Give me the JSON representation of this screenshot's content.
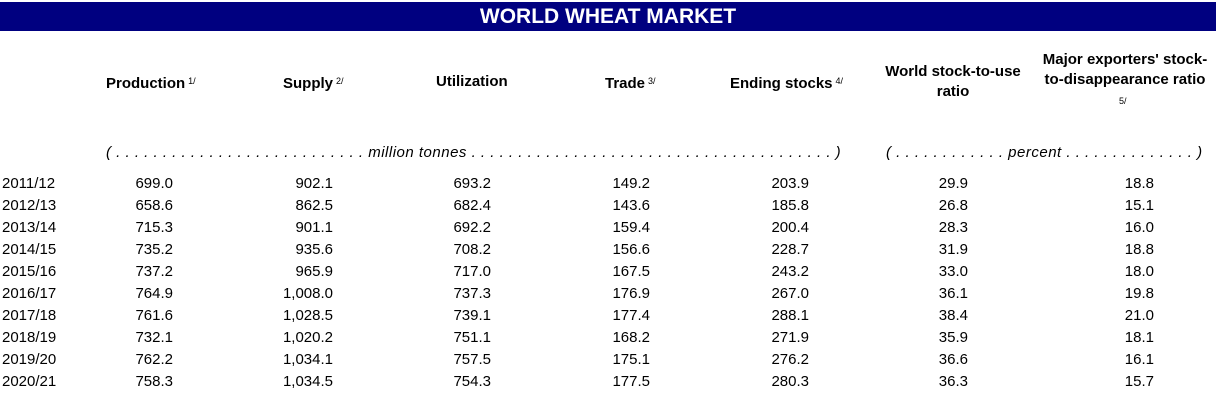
{
  "title": "WORLD WHEAT MARKET",
  "columns": [
    {
      "label": "Production",
      "note": "1/"
    },
    {
      "label": "Supply",
      "note": "2/"
    },
    {
      "label": "Utilization",
      "note": ""
    },
    {
      "label": "Trade",
      "note": "3/"
    },
    {
      "label": "Ending stocks",
      "note": "4/"
    },
    {
      "label_line1": "World stock-to-use",
      "label_line2": "ratio"
    },
    {
      "label_line1": "Major exporters' stock-",
      "label_line2": "to-disappearance ratio",
      "note": "5/"
    }
  ],
  "units": {
    "million": "( . . . . . . . . . . . . . . . . . . . . . . . . . . . million tonnes . . . . . . . . . . . . . . . . . . . . . . . . . . . . . . . . . . . . . . . )",
    "percent": "( . . . . . . . . . . . . percent . . . . . . . . . . . . . . )"
  },
  "rows": [
    {
      "year": "2011/12",
      "values": [
        "699.0",
        "902.1",
        "693.2",
        "149.2",
        "203.9",
        "29.9",
        "18.8"
      ]
    },
    {
      "year": "2012/13",
      "values": [
        "658.6",
        "862.5",
        "682.4",
        "143.6",
        "185.8",
        "26.8",
        "15.1"
      ]
    },
    {
      "year": "2013/14",
      "values": [
        "715.3",
        "901.1",
        "692.2",
        "159.4",
        "200.4",
        "28.3",
        "16.0"
      ]
    },
    {
      "year": "2014/15",
      "values": [
        "735.2",
        "935.6",
        "708.2",
        "156.6",
        "228.7",
        "31.9",
        "18.8"
      ]
    },
    {
      "year": "2015/16",
      "values": [
        "737.2",
        "965.9",
        "717.0",
        "167.5",
        "243.2",
        "33.0",
        "18.0"
      ]
    },
    {
      "year": "2016/17",
      "values": [
        "764.9",
        "1,008.0",
        "737.3",
        "176.9",
        "267.0",
        "36.1",
        "19.8"
      ]
    },
    {
      "year": "2017/18",
      "values": [
        "761.6",
        "1,028.5",
        "739.1",
        "177.4",
        "288.1",
        "38.4",
        "21.0"
      ]
    },
    {
      "year": "2018/19",
      "values": [
        "732.1",
        "1,020.2",
        "751.1",
        "168.2",
        "271.9",
        "35.9",
        "18.1"
      ]
    },
    {
      "year": "2019/20",
      "values": [
        "762.2",
        "1,034.1",
        "757.5",
        "175.1",
        "276.2",
        "36.6",
        "16.1"
      ]
    },
    {
      "year": "2020/21",
      "values": [
        "758.3",
        "1,034.5",
        "754.3",
        "177.5",
        "280.3",
        "36.3",
        "15.7"
      ]
    }
  ]
}
